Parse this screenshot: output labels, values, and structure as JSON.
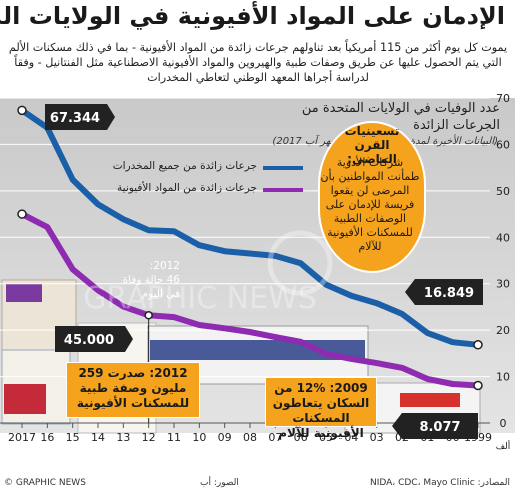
{
  "title": "الإدمان على المواد الأفيونية في الولايات المتحدة",
  "intro": "يموت كل يوم أكثر من 115 أمريكياً بعد تناولهم جرعات زائدة من المواد الأفيونية - بما في ذلك مسكنات الألم التي يتم الحصول عليها عن طريق وصفات طبية والهيروين والمواد الأفيونية الاصطناعية مثل الفنتانيل - وفقاً لدراسة أجراها المعهد الوطني لتعاطي المخدرات",
  "colors": {
    "all_drugs": "#1b5fa8",
    "opioids": "#8e2bb0",
    "accent": "#f5a21d"
  },
  "chart_data": {
    "type": "line",
    "title": "عدد الوفيات في الولايات المتحدة من الجرعات الزائدة",
    "subtitle": "(البيانات الأخيرة لمدة 12 شهرا انتهاءً بشهر آب 2017)",
    "x": [
      1999,
      2000,
      2001,
      2002,
      2003,
      2004,
      2005,
      2006,
      2007,
      2008,
      2009,
      2010,
      2011,
      2012,
      2013,
      2014,
      2015,
      2016,
      2017
    ],
    "x_tick_labels": [
      "1999",
      "00",
      "01",
      "02",
      "03",
      "04",
      "05",
      "06",
      "07",
      "08",
      "09",
      "10",
      "11",
      "12",
      "13",
      "14",
      "15",
      "16",
      "2017"
    ],
    "ylim": [
      0,
      70
    ],
    "y_ticks": [
      0,
      10,
      20,
      30,
      40,
      50,
      60,
      70
    ],
    "unit_label": "ألف",
    "x_reversed": true,
    "series": [
      {
        "name": "جرعات زائدة من جميع المخدرات",
        "color": "#1b5fa8",
        "values": [
          16.849,
          17.4,
          19.4,
          23.5,
          25.8,
          27.4,
          29.8,
          34.4,
          36.0,
          36.5,
          37.0,
          38.3,
          41.3,
          41.5,
          43.9,
          47.1,
          52.4,
          63.6,
          67.344
        ]
      },
      {
        "name": "جرعات زائدة من المواد الأفيونية",
        "color": "#8e2bb0",
        "values": [
          8.077,
          8.4,
          9.5,
          11.9,
          12.9,
          13.8,
          14.9,
          17.5,
          18.5,
          19.6,
          20.4,
          21.1,
          22.8,
          23.2,
          25.1,
          28.6,
          33.1,
          42.2,
          45.0
        ]
      }
    ],
    "data_labels": {
      "all_2017": "67.344",
      "opioid_2017": "45.000",
      "all_1999": "16.849",
      "opioid_1999": "8.077"
    },
    "grid": true
  },
  "tags": {
    "title": "تسعينيات القرن الماضي:",
    "text": "شركات الأدوية طمأنت المواطنين بأن المرضى لن يقعوا فريسة للإدمان على الوصفات الطبية للمسكنات الأفيونية للآلام"
  },
  "annotations": {
    "year_2012": "2012:",
    "per_day_line1": "46 حالة وفاة",
    "per_day_line2": "في اليوم",
    "c2012": "2012: صدرت 259 مليون وصفة طبية للمسكنات الأفيونية",
    "c2009": "2009: 12% من السكان يتعاطون المسكنات الأفيونية للآلام"
  },
  "footer": {
    "credit": "© GRAPHIC NEWS",
    "sources": "المصادر: NIDA، CDC، Mayo Clinic",
    "pictures": "الصور: أب"
  },
  "watermark": "GRAPHIC NEWS"
}
